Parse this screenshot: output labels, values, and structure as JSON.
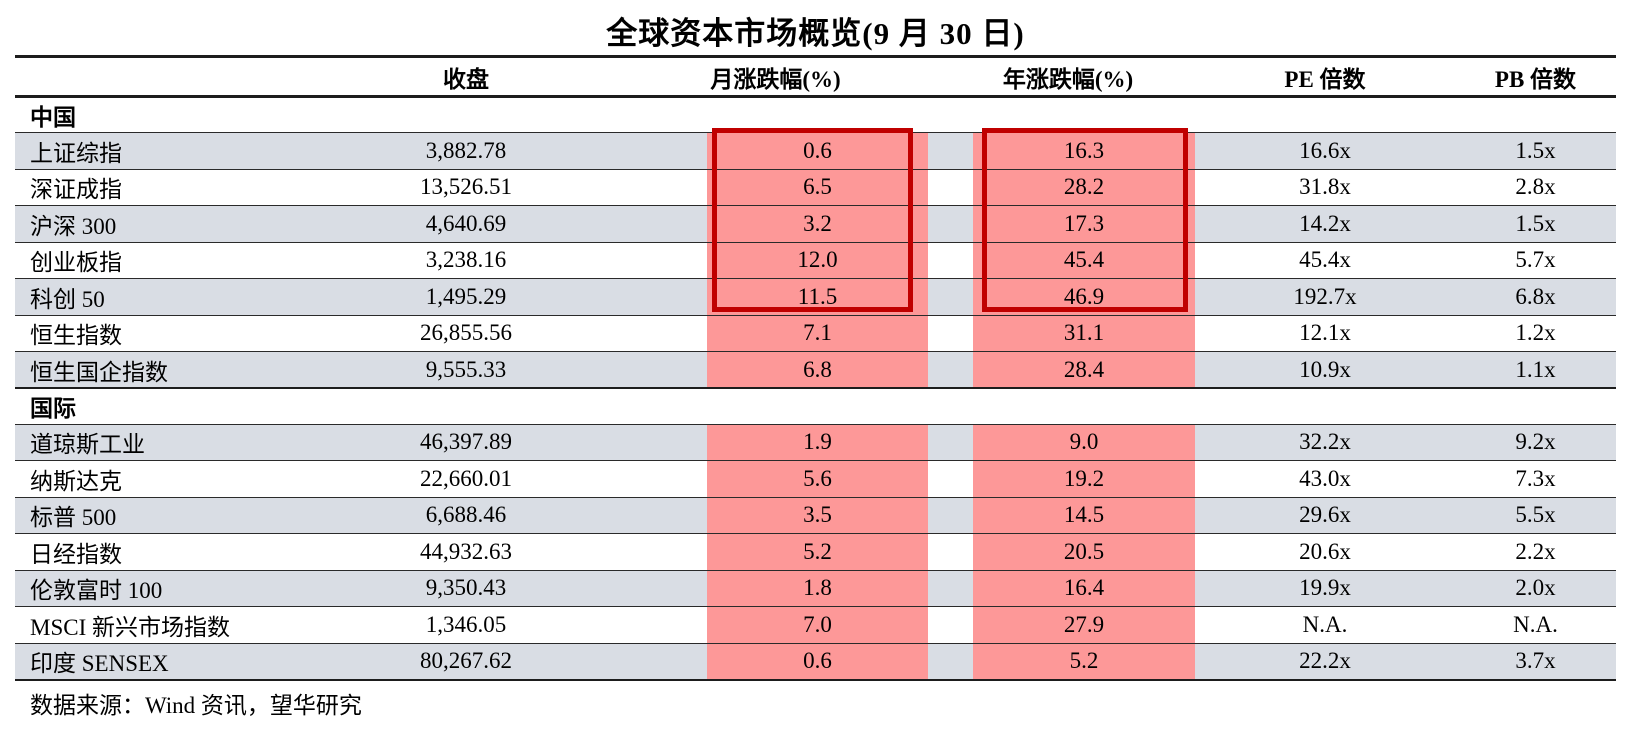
{
  "title": "全球资本市场概览(9 月 30 日)",
  "columns": {
    "close": "收盘",
    "monthly": "月涨跌幅(%)",
    "yearly": "年涨跌幅(%)",
    "pe": "PE 倍数",
    "pb": "PB 倍数"
  },
  "sections": [
    {
      "name": "中国",
      "rows": [
        {
          "label": "上证综指",
          "close": "3,882.78",
          "monthly": "0.6",
          "yearly": "16.3",
          "pe": "16.6x",
          "pb": "1.5x",
          "boxed": true
        },
        {
          "label": "深证成指",
          "close": "13,526.51",
          "monthly": "6.5",
          "yearly": "28.2",
          "pe": "31.8x",
          "pb": "2.8x",
          "boxed": true
        },
        {
          "label": "沪深 300",
          "close": "4,640.69",
          "monthly": "3.2",
          "yearly": "17.3",
          "pe": "14.2x",
          "pb": "1.5x",
          "boxed": true
        },
        {
          "label": "创业板指",
          "close": "3,238.16",
          "monthly": "12.0",
          "yearly": "45.4",
          "pe": "45.4x",
          "pb": "5.7x",
          "boxed": true
        },
        {
          "label": "科创 50",
          "close": "1,495.29",
          "monthly": "11.5",
          "yearly": "46.9",
          "pe": "192.7x",
          "pb": "6.8x",
          "boxed": true
        },
        {
          "label": "恒生指数",
          "close": "26,855.56",
          "monthly": "7.1",
          "yearly": "31.1",
          "pe": "12.1x",
          "pb": "1.2x",
          "boxed": false
        },
        {
          "label": "恒生国企指数",
          "close": "9,555.33",
          "monthly": "6.8",
          "yearly": "28.4",
          "pe": "10.9x",
          "pb": "1.1x",
          "boxed": false
        }
      ]
    },
    {
      "name": "国际",
      "rows": [
        {
          "label": "道琼斯工业",
          "close": "46,397.89",
          "monthly": "1.9",
          "yearly": "9.0",
          "pe": "32.2x",
          "pb": "9.2x",
          "boxed": false
        },
        {
          "label": "纳斯达克",
          "close": "22,660.01",
          "monthly": "5.6",
          "yearly": "19.2",
          "pe": "43.0x",
          "pb": "7.3x",
          "boxed": false
        },
        {
          "label": "标普 500",
          "close": "6,688.46",
          "monthly": "3.5",
          "yearly": "14.5",
          "pe": "29.6x",
          "pb": "5.5x",
          "boxed": false
        },
        {
          "label": "日经指数",
          "close": "44,932.63",
          "monthly": "5.2",
          "yearly": "20.5",
          "pe": "20.6x",
          "pb": "2.2x",
          "boxed": false
        },
        {
          "label": "伦敦富时 100",
          "close": "9,350.43",
          "monthly": "1.8",
          "yearly": "16.4",
          "pe": "19.9x",
          "pb": "2.0x",
          "boxed": false
        },
        {
          "label": "MSCI 新兴市场指数",
          "close": "1,346.05",
          "monthly": "7.0",
          "yearly": "27.9",
          "pe": "N.A.",
          "pb": "N.A.",
          "boxed": false
        },
        {
          "label": "印度 SENSEX",
          "close": "80,267.62",
          "monthly": "0.6",
          "yearly": "5.2",
          "pe": "22.2x",
          "pb": "3.7x",
          "boxed": false
        }
      ]
    }
  ],
  "footer": "数据来源：Wind 资讯，望华研究",
  "colors": {
    "highlight_fill": "#fd9898",
    "highlight_border": "#c00000",
    "row_stripe": "#d9dde4"
  }
}
